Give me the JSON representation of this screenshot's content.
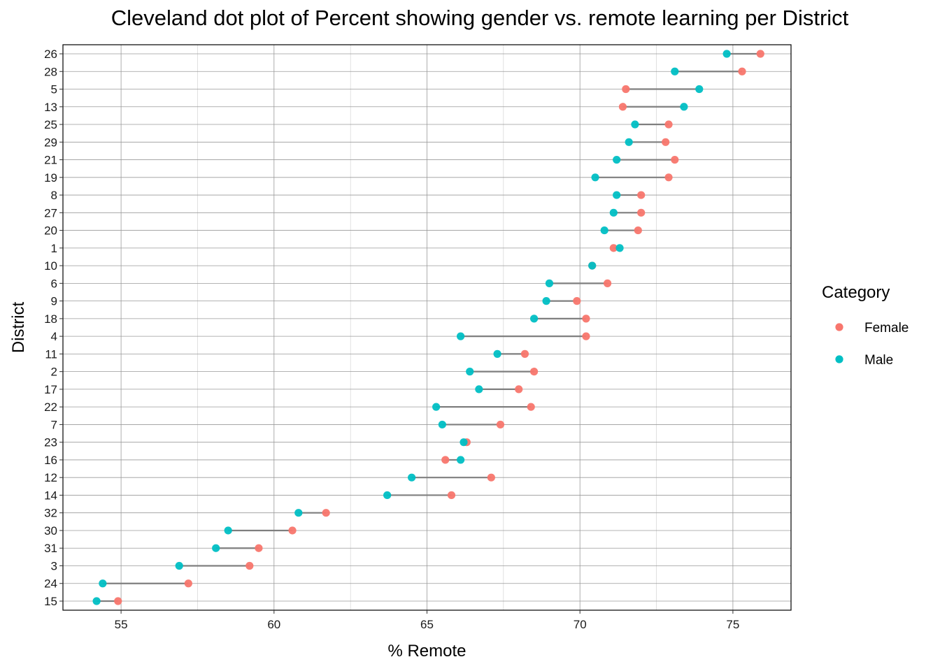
{
  "chart_data": {
    "type": "scatter",
    "title": "Cleveland dot plot of Percent showing gender vs. remote learning per District",
    "xlabel": "% Remote",
    "ylabel": "District",
    "xlim": [
      53.1,
      76.9
    ],
    "xticks": [
      55,
      60,
      65,
      70,
      75
    ],
    "grid": true,
    "legend": {
      "title": "Category",
      "position": "right"
    },
    "categories": [
      "26",
      "28",
      "5",
      "13",
      "25",
      "29",
      "21",
      "19",
      "8",
      "27",
      "20",
      "1",
      "10",
      "6",
      "9",
      "18",
      "4",
      "11",
      "2",
      "17",
      "22",
      "7",
      "23",
      "16",
      "12",
      "14",
      "32",
      "30",
      "31",
      "3",
      "24",
      "15"
    ],
    "series": [
      {
        "name": "Female",
        "color": "#F8766D",
        "values": [
          75.9,
          75.3,
          71.5,
          71.4,
          72.9,
          72.8,
          73.1,
          72.9,
          72.0,
          72.0,
          71.9,
          71.1,
          70.4,
          70.9,
          69.9,
          70.2,
          70.2,
          68.2,
          68.5,
          68.0,
          68.4,
          67.4,
          66.3,
          65.6,
          67.1,
          65.8,
          61.7,
          60.6,
          59.5,
          59.2,
          57.2,
          54.9
        ]
      },
      {
        "name": "Male",
        "color": "#00BFC4",
        "values": [
          74.8,
          73.1,
          73.9,
          73.4,
          71.8,
          71.6,
          71.2,
          70.5,
          71.2,
          71.1,
          70.8,
          71.3,
          70.4,
          69.0,
          68.9,
          68.5,
          66.1,
          67.3,
          66.4,
          66.7,
          65.3,
          65.5,
          66.2,
          66.1,
          64.5,
          63.7,
          60.8,
          58.5,
          58.1,
          56.9,
          54.4,
          54.2
        ]
      }
    ]
  }
}
